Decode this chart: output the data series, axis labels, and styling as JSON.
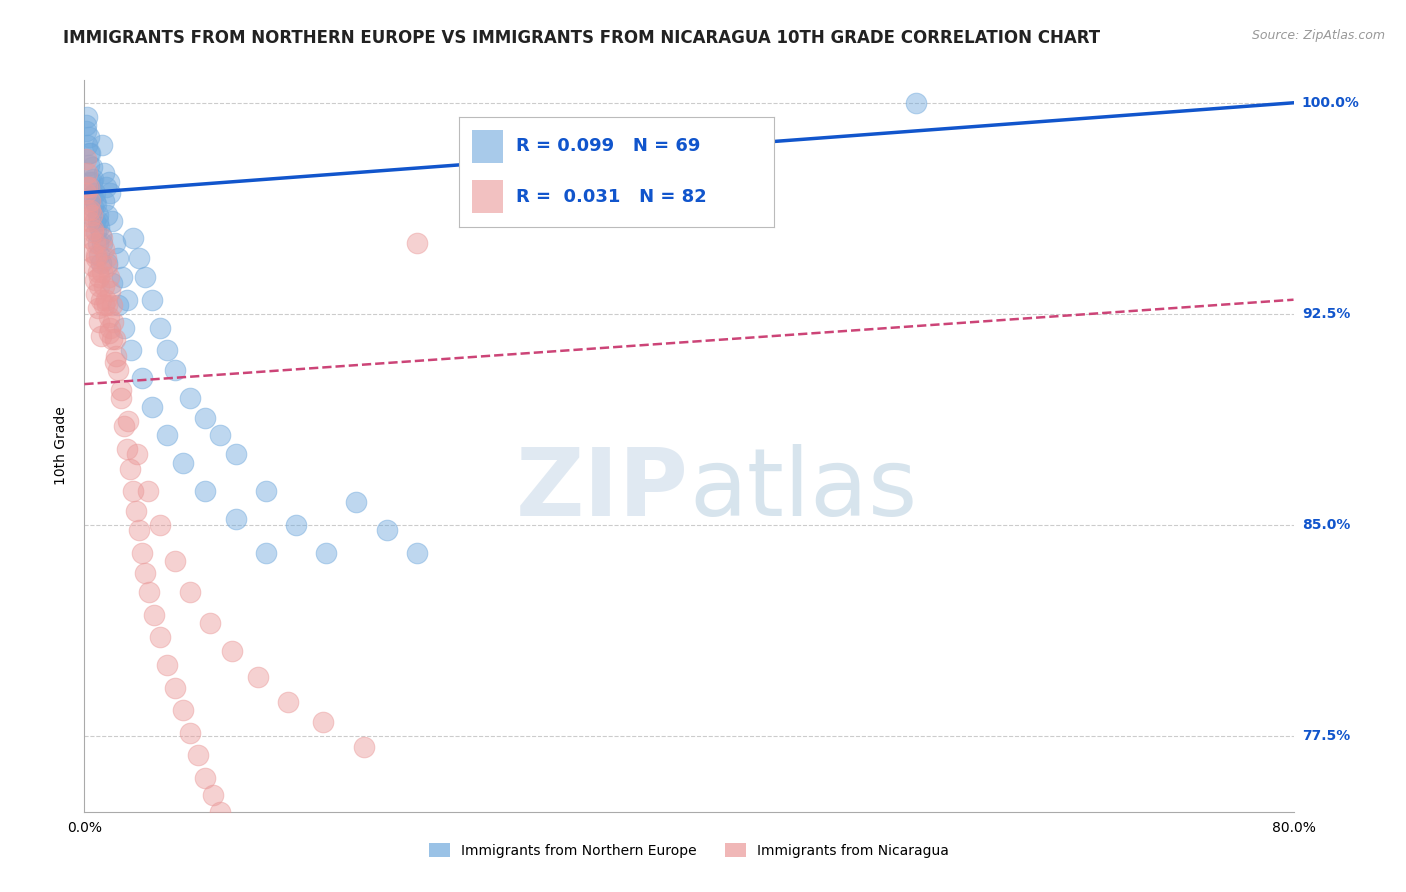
{
  "title": "IMMIGRANTS FROM NORTHERN EUROPE VS IMMIGRANTS FROM NICARAGUA 10TH GRADE CORRELATION CHART",
  "source": "Source: ZipAtlas.com",
  "xlabel_blue": "Immigrants from Northern Europe",
  "xlabel_pink": "Immigrants from Nicaragua",
  "ylabel": "10th Grade",
  "xlim": [
    0.0,
    0.8
  ],
  "ylim": [
    0.748,
    1.008
  ],
  "yticks": [
    0.775,
    0.85,
    0.925,
    1.0
  ],
  "ytick_labels": [
    "77.5%",
    "85.0%",
    "92.5%",
    "100.0%"
  ],
  "xtick_labels": [
    "0.0%",
    "80.0%"
  ],
  "blue_color": "#6fa8dc",
  "pink_color": "#ea9999",
  "blue_line_color": "#1155cc",
  "pink_line_color": "#cc4477",
  "grid_color": "#cccccc",
  "legend_R_blue": "R = 0.099",
  "legend_N_blue": "N = 69",
  "legend_R_pink": "R =  0.031",
  "legend_N_pink": "N = 82",
  "blue_trend_x0": 0.0,
  "blue_trend_y0": 0.968,
  "blue_trend_x1": 0.8,
  "blue_trend_y1": 1.0,
  "pink_trend_x0": 0.0,
  "pink_trend_y0": 0.9,
  "pink_trend_x1": 0.8,
  "pink_trend_y1": 0.93,
  "blue_scatter_x": [
    0.001,
    0.002,
    0.002,
    0.003,
    0.003,
    0.004,
    0.004,
    0.005,
    0.005,
    0.006,
    0.006,
    0.007,
    0.007,
    0.008,
    0.008,
    0.009,
    0.009,
    0.01,
    0.01,
    0.011,
    0.011,
    0.012,
    0.013,
    0.013,
    0.014,
    0.015,
    0.016,
    0.017,
    0.018,
    0.02,
    0.022,
    0.025,
    0.028,
    0.032,
    0.036,
    0.04,
    0.045,
    0.05,
    0.055,
    0.06,
    0.07,
    0.08,
    0.09,
    0.1,
    0.12,
    0.14,
    0.16,
    0.18,
    0.2,
    0.22,
    0.001,
    0.003,
    0.005,
    0.007,
    0.009,
    0.012,
    0.015,
    0.018,
    0.022,
    0.026,
    0.031,
    0.038,
    0.045,
    0.055,
    0.065,
    0.08,
    0.1,
    0.12,
    0.55
  ],
  "blue_scatter_y": [
    0.99,
    0.985,
    0.995,
    0.978,
    0.988,
    0.972,
    0.982,
    0.967,
    0.977,
    0.963,
    0.973,
    0.958,
    0.968,
    0.954,
    0.964,
    0.95,
    0.96,
    0.946,
    0.956,
    0.943,
    0.953,
    0.985,
    0.975,
    0.965,
    0.97,
    0.96,
    0.972,
    0.968,
    0.958,
    0.95,
    0.945,
    0.938,
    0.93,
    0.952,
    0.945,
    0.938,
    0.93,
    0.92,
    0.912,
    0.905,
    0.895,
    0.888,
    0.882,
    0.875,
    0.862,
    0.85,
    0.84,
    0.858,
    0.848,
    0.84,
    0.992,
    0.982,
    0.972,
    0.965,
    0.958,
    0.95,
    0.943,
    0.936,
    0.928,
    0.92,
    0.912,
    0.902,
    0.892,
    0.882,
    0.872,
    0.862,
    0.852,
    0.84,
    1.0
  ],
  "pink_scatter_x": [
    0.001,
    0.001,
    0.002,
    0.002,
    0.003,
    0.003,
    0.004,
    0.004,
    0.005,
    0.005,
    0.006,
    0.006,
    0.007,
    0.007,
    0.008,
    0.008,
    0.009,
    0.009,
    0.01,
    0.01,
    0.011,
    0.011,
    0.012,
    0.012,
    0.013,
    0.013,
    0.014,
    0.014,
    0.015,
    0.015,
    0.016,
    0.016,
    0.017,
    0.017,
    0.018,
    0.018,
    0.019,
    0.02,
    0.021,
    0.022,
    0.024,
    0.026,
    0.028,
    0.03,
    0.032,
    0.034,
    0.036,
    0.038,
    0.04,
    0.043,
    0.046,
    0.05,
    0.055,
    0.06,
    0.065,
    0.07,
    0.075,
    0.08,
    0.085,
    0.09,
    0.002,
    0.004,
    0.006,
    0.008,
    0.01,
    0.013,
    0.016,
    0.02,
    0.024,
    0.029,
    0.035,
    0.042,
    0.05,
    0.06,
    0.07,
    0.083,
    0.098,
    0.115,
    0.135,
    0.158,
    0.185,
    0.22
  ],
  "pink_scatter_y": [
    0.98,
    0.968,
    0.975,
    0.962,
    0.97,
    0.958,
    0.965,
    0.952,
    0.96,
    0.947,
    0.955,
    0.942,
    0.95,
    0.937,
    0.945,
    0.932,
    0.94,
    0.927,
    0.935,
    0.922,
    0.93,
    0.917,
    0.952,
    0.94,
    0.948,
    0.935,
    0.945,
    0.93,
    0.942,
    0.928,
    0.938,
    0.924,
    0.933,
    0.92,
    0.928,
    0.916,
    0.922,
    0.916,
    0.91,
    0.905,
    0.895,
    0.885,
    0.877,
    0.87,
    0.862,
    0.855,
    0.848,
    0.84,
    0.833,
    0.826,
    0.818,
    0.81,
    0.8,
    0.792,
    0.784,
    0.776,
    0.768,
    0.76,
    0.754,
    0.748,
    0.97,
    0.962,
    0.954,
    0.946,
    0.938,
    0.928,
    0.918,
    0.908,
    0.898,
    0.887,
    0.875,
    0.862,
    0.85,
    0.837,
    0.826,
    0.815,
    0.805,
    0.796,
    0.787,
    0.78,
    0.771,
    0.95
  ],
  "watermark_zip": "ZIP",
  "watermark_atlas": "atlas",
  "background_color": "#ffffff",
  "title_fontsize": 12,
  "axis_label_fontsize": 10,
  "tick_fontsize": 10,
  "legend_fontsize": 13
}
